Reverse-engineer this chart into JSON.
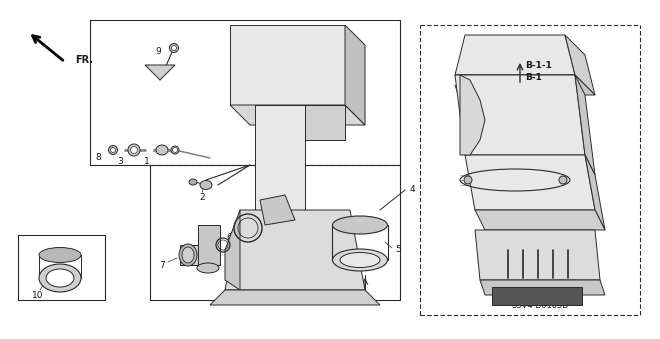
{
  "bg_color": "#ffffff",
  "fig_width": 6.4,
  "fig_height": 3.19,
  "diagram_code": "S3V4-B0105B",
  "line_color": "#2a2a2a",
  "label_color": "#1a1a1a",
  "fill_light": "#e8e8e8",
  "fill_medium": "#c8c8c8",
  "fill_dark": "#555555"
}
